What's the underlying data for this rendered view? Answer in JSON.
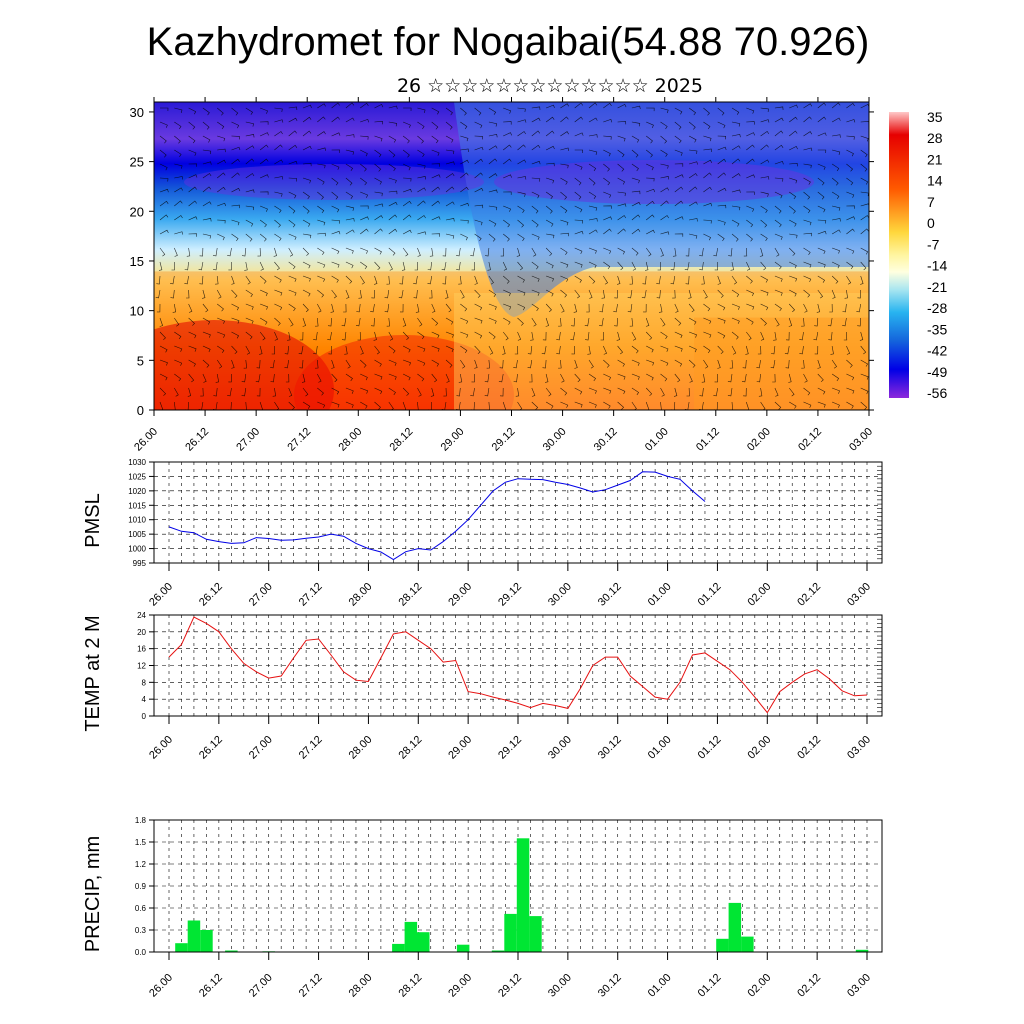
{
  "title": "Kazhydromet for Nogaibai(54.88 70.926)",
  "subtitle": "26 ☆☆☆☆☆☆☆☆☆☆☆☆☆ 2025",
  "time_labels": [
    "26.00",
    "26.12",
    "27.00",
    "27.12",
    "28.00",
    "28.12",
    "29.00",
    "29.12",
    "30.00",
    "30.12",
    "01.00",
    "01.12",
    "02.00",
    "02.12",
    "03.00"
  ],
  "chart_data": [
    {
      "type": "heatmap",
      "x_categories": [
        "26.00",
        "26.12",
        "27.00",
        "27.12",
        "28.00",
        "28.12",
        "29.00",
        "29.12",
        "30.00",
        "30.12",
        "01.00",
        "01.12",
        "02.00",
        "02.12",
        "03.00"
      ],
      "y_ticks": [
        0,
        5,
        10,
        15,
        20,
        25,
        30
      ],
      "ylim": [
        0,
        31
      ],
      "colorbar": {
        "labels": [
          "35",
          "28",
          "21",
          "14",
          "7",
          "0",
          "-7",
          "-14",
          "-21",
          "-28",
          "-35",
          "-42",
          "-49",
          "-56"
        ],
        "range": [
          -63,
          42
        ]
      },
      "wind_barbs": true
    },
    {
      "type": "line",
      "ylabel": "PMSL",
      "x": [
        "26.00",
        "26.12",
        "27.00",
        "27.12",
        "28.00",
        "28.12",
        "29.00",
        "29.12",
        "30.00",
        "30.12",
        "01.00",
        "01.12",
        "02.00",
        "02.12",
        "03.00"
      ],
      "ylim": [
        995,
        1030
      ],
      "y_ticks": [
        995,
        1000,
        1005,
        1010,
        1015,
        1020,
        1025,
        1030
      ],
      "series": [
        {
          "color": "#0000e6",
          "points": [
            [
              0,
              1007.5
            ],
            [
              0.25,
              1006.0
            ],
            [
              0.5,
              1005.5
            ],
            [
              0.75,
              1003.2
            ],
            [
              1.0,
              1002.4
            ],
            [
              1.25,
              1001.8
            ],
            [
              1.5,
              1002.0
            ],
            [
              1.75,
              1003.8
            ],
            [
              2.0,
              1003.5
            ],
            [
              2.25,
              1002.9
            ],
            [
              2.5,
              1003.0
            ],
            [
              2.75,
              1003.6
            ],
            [
              3.0,
              1004.0
            ],
            [
              3.25,
              1005.0
            ],
            [
              3.5,
              1004.3
            ],
            [
              3.75,
              1001.8
            ],
            [
              4.0,
              1000.0
            ],
            [
              4.25,
              998.8
            ],
            [
              4.5,
              996.2
            ],
            [
              4.75,
              998.9
            ],
            [
              5.0,
              1000.0
            ],
            [
              5.25,
              999.5
            ],
            [
              5.5,
              1002.4
            ],
            [
              5.75,
              1006.0
            ],
            [
              6.0,
              1010.0
            ],
            [
              6.25,
              1015.0
            ],
            [
              6.5,
              1020.0
            ],
            [
              6.75,
              1023.0
            ],
            [
              7.0,
              1024.2
            ],
            [
              7.25,
              1024.0
            ],
            [
              7.5,
              1023.9
            ],
            [
              7.75,
              1023.0
            ],
            [
              8.0,
              1022.2
            ],
            [
              8.25,
              1021.0
            ],
            [
              8.5,
              1019.6
            ],
            [
              8.75,
              1020.4
            ],
            [
              9.0,
              1022.0
            ],
            [
              9.25,
              1023.6
            ],
            [
              9.5,
              1026.6
            ],
            [
              9.75,
              1026.5
            ],
            [
              10.0,
              1025.0
            ],
            [
              10.25,
              1024.0
            ],
            [
              10.5,
              1020.0
            ],
            [
              10.75,
              1016.3
            ]
          ]
        }
      ]
    },
    {
      "type": "line",
      "ylabel": "TEMP at 2 M",
      "x": [
        "26.00",
        "26.12",
        "27.00",
        "27.12",
        "28.00",
        "28.12",
        "29.00",
        "29.12",
        "30.00",
        "30.12",
        "01.00",
        "01.12",
        "02.00",
        "02.12",
        "03.00"
      ],
      "ylim": [
        0,
        24
      ],
      "y_ticks": [
        0,
        4,
        8,
        12,
        16,
        20,
        24
      ],
      "series": [
        {
          "color": "#e61010",
          "points": [
            [
              0,
              14.0
            ],
            [
              0.25,
              17.0
            ],
            [
              0.5,
              23.5
            ],
            [
              0.75,
              22.0
            ],
            [
              1.0,
              20.0
            ],
            [
              1.25,
              16.0
            ],
            [
              1.5,
              12.5
            ],
            [
              1.75,
              10.5
            ],
            [
              2.0,
              9.0
            ],
            [
              2.25,
              9.5
            ],
            [
              2.5,
              13.8
            ],
            [
              2.75,
              18.0
            ],
            [
              3.0,
              18.3
            ],
            [
              3.25,
              14.5
            ],
            [
              3.5,
              10.5
            ],
            [
              3.75,
              8.5
            ],
            [
              4.0,
              8.2
            ],
            [
              4.25,
              13.8
            ],
            [
              4.5,
              19.5
            ],
            [
              4.75,
              20.0
            ],
            [
              5.0,
              18.0
            ],
            [
              5.25,
              16.0
            ],
            [
              5.5,
              12.8
            ],
            [
              5.75,
              13.2
            ],
            [
              6.0,
              5.8
            ],
            [
              6.25,
              5.3
            ],
            [
              6.5,
              4.5
            ],
            [
              6.75,
              3.8
            ],
            [
              7.0,
              3.0
            ],
            [
              7.25,
              2.0
            ],
            [
              7.5,
              3.0
            ],
            [
              7.75,
              2.5
            ],
            [
              8.0,
              1.8
            ],
            [
              8.25,
              6.5
            ],
            [
              8.5,
              12.0
            ],
            [
              8.75,
              14.0
            ],
            [
              9.0,
              14.0
            ],
            [
              9.25,
              9.5
            ],
            [
              9.5,
              7.0
            ],
            [
              9.75,
              4.5
            ],
            [
              10.0,
              4.0
            ],
            [
              10.25,
              8.0
            ],
            [
              10.5,
              14.5
            ],
            [
              10.75,
              15.0
            ],
            [
              11.0,
              13.0
            ],
            [
              11.25,
              11.0
            ],
            [
              11.5,
              8.0
            ],
            [
              11.75,
              4.5
            ],
            [
              12.0,
              0.8
            ],
            [
              12.25,
              5.8
            ],
            [
              12.5,
              8.0
            ],
            [
              12.75,
              10.0
            ],
            [
              13.0,
              11.0
            ],
            [
              13.25,
              8.8
            ],
            [
              13.5,
              6.0
            ],
            [
              13.75,
              4.8
            ],
            [
              14.0,
              5.0
            ]
          ]
        }
      ]
    },
    {
      "type": "bar",
      "ylabel": "PRECIP, mm",
      "x": [
        "26.00",
        "26.12",
        "27.00",
        "27.12",
        "28.00",
        "28.12",
        "29.00",
        "29.12",
        "30.00",
        "30.12",
        "01.00",
        "01.12",
        "02.00",
        "02.12",
        "03.00"
      ],
      "ylim": [
        0,
        1.8
      ],
      "y_ticks": [
        "0.0",
        "0.3",
        "0.6",
        "0.9",
        "1.2",
        "1.5",
        "1.8"
      ],
      "color": "#00e633",
      "bars": [
        [
          0.25,
          0.12
        ],
        [
          0.5,
          0.43
        ],
        [
          0.75,
          0.3
        ],
        [
          1.25,
          0.02
        ],
        [
          2.0,
          0.01
        ],
        [
          4.6,
          0.11
        ],
        [
          4.85,
          0.41
        ],
        [
          5.1,
          0.27
        ],
        [
          5.9,
          0.1
        ],
        [
          6.6,
          0.02
        ],
        [
          6.85,
          0.52
        ],
        [
          7.1,
          1.55
        ],
        [
          7.35,
          0.49
        ],
        [
          11.1,
          0.18
        ],
        [
          11.35,
          0.67
        ],
        [
          11.6,
          0.21
        ],
        [
          13.9,
          0.03
        ]
      ]
    }
  ]
}
